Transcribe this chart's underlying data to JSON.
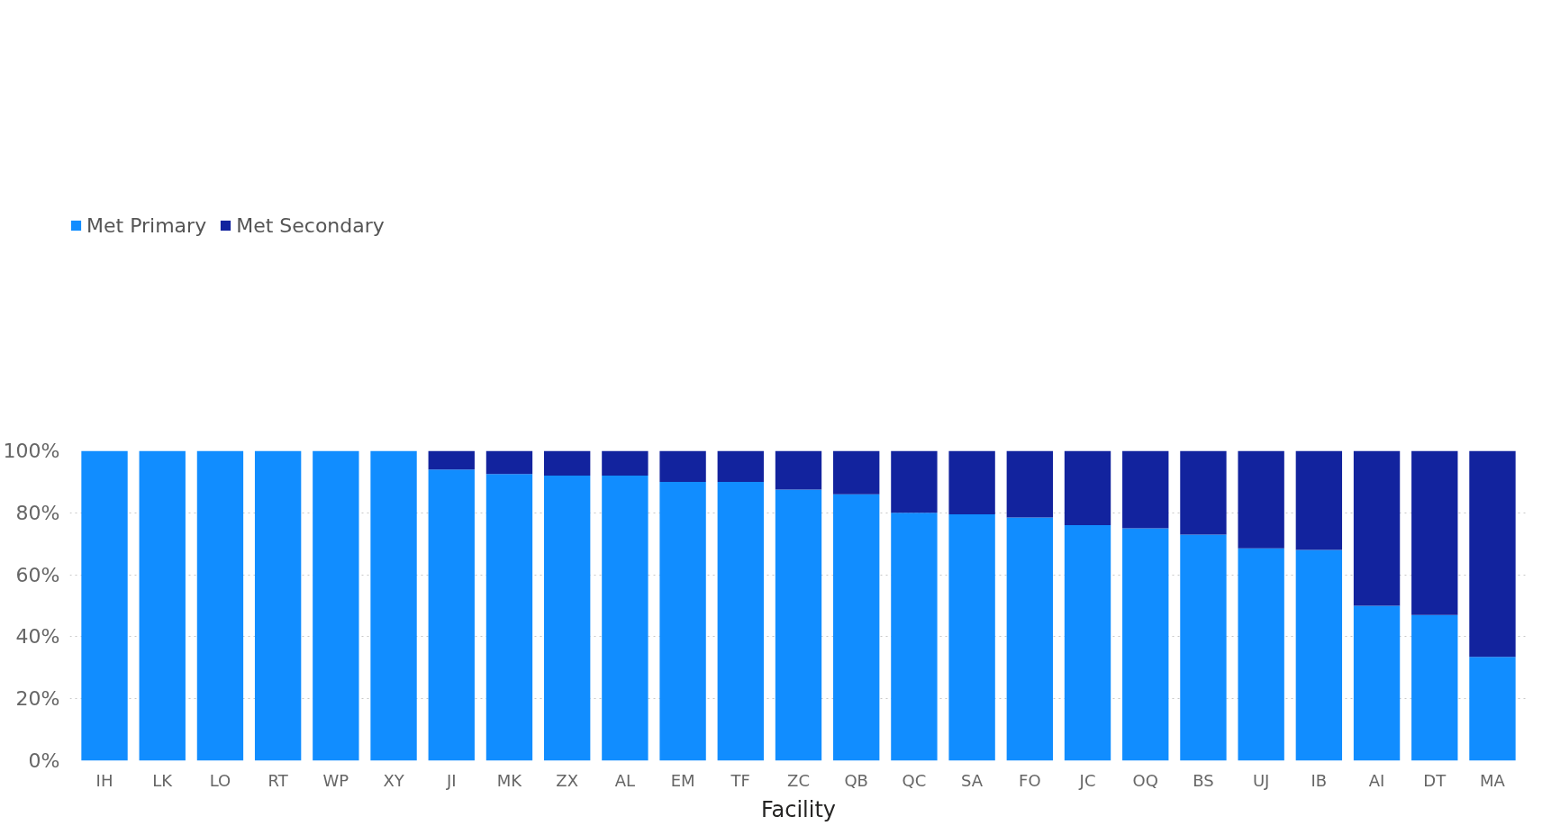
{
  "chart_data": {
    "type": "bar",
    "stacked": true,
    "xlabel": "Facility",
    "categories": [
      "IH",
      "LK",
      "LO",
      "RT",
      "WP",
      "XY",
      "JI",
      "MK",
      "ZX",
      "AL",
      "EM",
      "TF",
      "ZC",
      "QB",
      "QC",
      "SA",
      "FO",
      "JC",
      "OQ",
      "BS",
      "UJ",
      "IB",
      "AI",
      "DT",
      "MA"
    ],
    "series": [
      {
        "name": "Met Primary",
        "color": "#118dff",
        "values": [
          100,
          100,
          100,
          100,
          100,
          100,
          94,
          92.5,
          92,
          92,
          90,
          90,
          87.5,
          86,
          80,
          79.5,
          78.5,
          76,
          75,
          73,
          68.5,
          68,
          50,
          47,
          33.5
        ]
      },
      {
        "name": "Met Secondary",
        "color": "#12239e",
        "values": [
          0,
          0,
          0,
          0,
          0,
          0,
          6,
          7.5,
          8,
          8,
          10,
          10,
          12.5,
          14,
          20,
          20.5,
          21.5,
          24,
          25,
          27,
          31.5,
          32,
          50,
          53,
          66.5
        ]
      }
    ],
    "ylim": [
      0,
      100
    ],
    "yticks": [
      {
        "value": 0,
        "label": "0%"
      },
      {
        "value": 20,
        "label": "20%"
      },
      {
        "value": 40,
        "label": "40%"
      },
      {
        "value": 60,
        "label": "60%"
      },
      {
        "value": 80,
        "label": "80%"
      },
      {
        "value": 100,
        "label": "100%"
      }
    ],
    "grid": "y",
    "legend": "top left"
  }
}
